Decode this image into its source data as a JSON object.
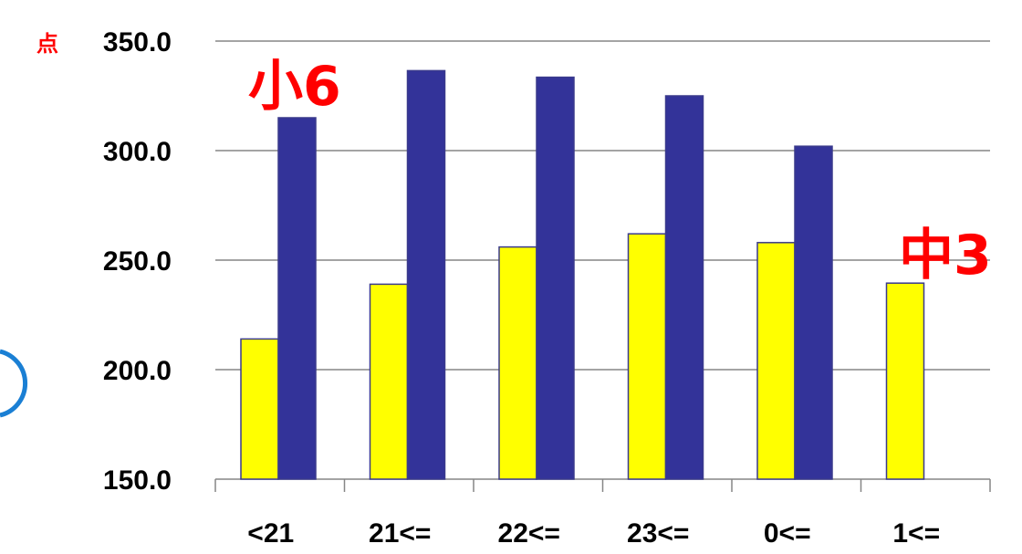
{
  "chart_data": {
    "type": "bar",
    "categories": [
      "<21",
      "21<=",
      "22<=",
      "23<=",
      "0<=",
      "1<="
    ],
    "series": [
      {
        "values": [
          214,
          239,
          256,
          262,
          258,
          239.5
        ],
        "color": "#ffff00"
      },
      {
        "values": [
          315,
          336.5,
          333.5,
          325,
          302,
          null
        ],
        "color": "#333399"
      }
    ],
    "ylim": [
      150,
      350
    ],
    "yticks": [
      150,
      200,
      250,
      300,
      350
    ],
    "ytick_labels": [
      "150.0",
      "200.0",
      "250.0",
      "300.0",
      "350.0"
    ],
    "y_unit": "点",
    "grid": true,
    "annotations": [
      {
        "text": "小6"
      },
      {
        "text": "中3"
      }
    ],
    "accent_color": "#ff0000",
    "gridline_color": "#868686",
    "bar_edge_color": "#3a3a8c"
  }
}
